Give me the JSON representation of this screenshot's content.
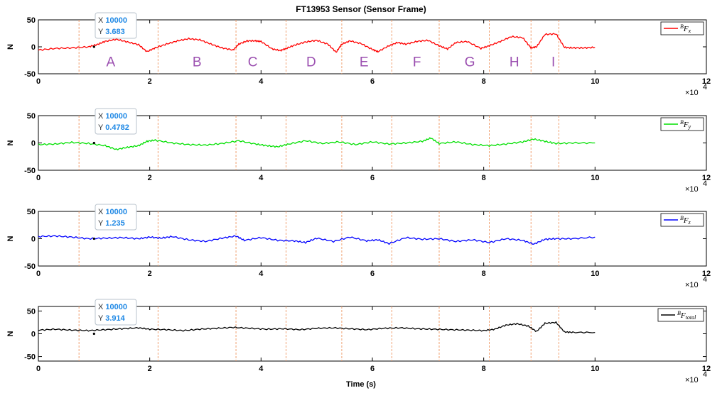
{
  "title": "FT13953 Sensor (Sensor Frame)",
  "xlabel": "Time (s)",
  "x_multiplier": "×10",
  "x_multiplier_exp": "4",
  "chart_data": [
    {
      "type": "line",
      "ylabel": "N",
      "xlim": [
        0,
        12
      ],
      "ylim": [
        -50,
        50
      ],
      "xticks": [
        "0",
        "2",
        "4",
        "6",
        "8",
        "10",
        "12"
      ],
      "yticks": [
        "50",
        "0",
        "-50"
      ],
      "series": [
        {
          "name": "BFx",
          "color": "#ff0000",
          "x": [
            0,
            0.3,
            0.6,
            0.9,
            1.05,
            1.2,
            1.4,
            1.6,
            1.8,
            1.95,
            2.1,
            2.3,
            2.5,
            2.7,
            2.9,
            3.1,
            3.3,
            3.5,
            3.6,
            3.75,
            3.9,
            4.0,
            4.2,
            4.35,
            4.45,
            4.6,
            4.8,
            5.0,
            5.2,
            5.35,
            5.45,
            5.6,
            5.8,
            6.0,
            6.1,
            6.3,
            6.45,
            6.6,
            6.8,
            7.0,
            7.2,
            7.35,
            7.5,
            7.7,
            7.95,
            8.1,
            8.3,
            8.5,
            8.7,
            8.85,
            8.95,
            9.1,
            9.3,
            9.45,
            9.6,
            9.8,
            10.0
          ],
          "y": [
            -6,
            -3,
            -2,
            0,
            4,
            10,
            14,
            9,
            4,
            -9,
            -2,
            5,
            11,
            15,
            13,
            5,
            -2,
            -6,
            5,
            11,
            11,
            10,
            -4,
            -7,
            -3,
            3,
            9,
            12,
            5,
            -10,
            5,
            11,
            6,
            -5,
            -9,
            2,
            8,
            5,
            10,
            12,
            2,
            -4,
            8,
            10,
            -3,
            2,
            10,
            19,
            17,
            -2,
            0,
            23,
            24,
            -1,
            -2,
            -2,
            -1
          ]
        },
        {
          "name": "BFy",
          "color": "#00e000",
          "x": [
            0,
            0.3,
            0.6,
            0.9,
            1.2,
            1.4,
            1.6,
            1.8,
            1.95,
            2.1,
            2.4,
            2.7,
            3.0,
            3.3,
            3.6,
            3.9,
            4.1,
            4.3,
            4.5,
            4.8,
            5.1,
            5.4,
            5.7,
            6.0,
            6.3,
            6.6,
            6.9,
            7.05,
            7.2,
            7.5,
            7.8,
            8.1,
            8.4,
            8.7,
            8.9,
            9.1,
            9.3,
            9.6,
            10.0
          ],
          "y": [
            -3,
            -2,
            1,
            -1,
            -5,
            -12,
            -8,
            -5,
            3,
            5,
            0,
            -3,
            -4,
            -1,
            4,
            -2,
            -5,
            -7,
            -2,
            4,
            -1,
            2,
            -3,
            2,
            -2,
            0,
            3,
            9,
            -1,
            2,
            -3,
            -5,
            -2,
            2,
            7,
            3,
            -1,
            0,
            0
          ]
        },
        {
          "name": "BFz",
          "color": "#0000ff",
          "x": [
            0,
            0.3,
            0.6,
            0.9,
            1.2,
            1.5,
            1.8,
            2.0,
            2.2,
            2.4,
            2.7,
            3.0,
            3.3,
            3.55,
            3.7,
            4.0,
            4.3,
            4.6,
            4.8,
            5.0,
            5.3,
            5.6,
            5.9,
            6.1,
            6.3,
            6.6,
            6.9,
            7.2,
            7.5,
            7.8,
            8.1,
            8.4,
            8.7,
            8.9,
            9.1,
            9.3,
            9.6,
            10.0
          ],
          "y": [
            4,
            5,
            3,
            0,
            1,
            2,
            0,
            3,
            1,
            4,
            -2,
            -5,
            1,
            5,
            -3,
            2,
            -3,
            -4,
            -7,
            1,
            -5,
            3,
            -4,
            -2,
            -9,
            2,
            -1,
            0,
            -5,
            -2,
            -7,
            0,
            -3,
            -10,
            -1,
            0,
            0,
            3
          ]
        },
        {
          "name": "BFtotal",
          "color": "#000000",
          "x": [
            0,
            0.3,
            0.6,
            0.9,
            1.2,
            1.5,
            1.8,
            2.0,
            2.3,
            2.6,
            2.9,
            3.2,
            3.5,
            3.8,
            4.1,
            4.4,
            4.7,
            5.0,
            5.3,
            5.6,
            5.9,
            6.2,
            6.5,
            6.8,
            7.1,
            7.4,
            7.7,
            8.0,
            8.2,
            8.4,
            8.6,
            8.8,
            8.95,
            9.1,
            9.3,
            9.45,
            9.6,
            10.0
          ],
          "y": [
            8,
            10,
            8,
            7,
            9,
            11,
            13,
            10,
            9,
            7,
            10,
            12,
            14,
            12,
            10,
            11,
            9,
            12,
            13,
            11,
            9,
            12,
            13,
            11,
            10,
            9,
            8,
            7,
            10,
            19,
            22,
            17,
            5,
            23,
            25,
            4,
            3,
            3
          ]
        }
      ],
      "data_tip": {
        "x_label": "X",
        "x_value": "10000",
        "y_label": "Y",
        "y_value": "3.683"
      },
      "segment_labels": [
        "A",
        "B",
        "C",
        "D",
        "E",
        "F",
        "G",
        "H",
        "I"
      ],
      "segment_label_x": [
        1.3,
        2.85,
        3.85,
        4.9,
        5.85,
        6.8,
        7.75,
        8.55,
        9.25
      ],
      "dividers_x": [
        0.73,
        2.15,
        3.55,
        4.45,
        5.45,
        6.35,
        7.2,
        8.1,
        8.85,
        9.35
      ],
      "legend": "top-right"
    },
    {
      "type": "line",
      "ylabel": "N",
      "xlim": [
        0,
        12
      ],
      "ylim": [
        -50,
        50
      ],
      "xticks": [
        "0",
        "2",
        "4",
        "6",
        "8",
        "10",
        "12"
      ],
      "yticks": [
        "50",
        "0",
        "-50"
      ],
      "series_ref": 1,
      "data_tip": {
        "x_label": "X",
        "x_value": "10000",
        "y_label": "Y",
        "y_value": "0.4782"
      },
      "legend": "top-right"
    },
    {
      "type": "line",
      "ylabel": "N",
      "xlim": [
        0,
        12
      ],
      "ylim": [
        -50,
        50
      ],
      "xticks": [
        "0",
        "2",
        "4",
        "6",
        "8",
        "10",
        "12"
      ],
      "yticks": [
        "50",
        "0",
        "-50"
      ],
      "series_ref": 2,
      "data_tip": {
        "x_label": "X",
        "x_value": "10000",
        "y_label": "Y",
        "y_value": "1.235"
      },
      "legend": "top-right"
    },
    {
      "type": "line",
      "ylabel": "N",
      "xlim": [
        0,
        12
      ],
      "ylim": [
        -60,
        60
      ],
      "xticks": [
        "0",
        "2",
        "4",
        "6",
        "8",
        "10",
        "12"
      ],
      "yticks": [
        "50",
        "0",
        "-50"
      ],
      "ytick_values": [
        50,
        0,
        -50
      ],
      "series_ref": 3,
      "data_tip": {
        "x_label": "X",
        "x_value": "10000",
        "y_label": "Y",
        "y_value": "3.914"
      },
      "legend": "top-right"
    }
  ]
}
